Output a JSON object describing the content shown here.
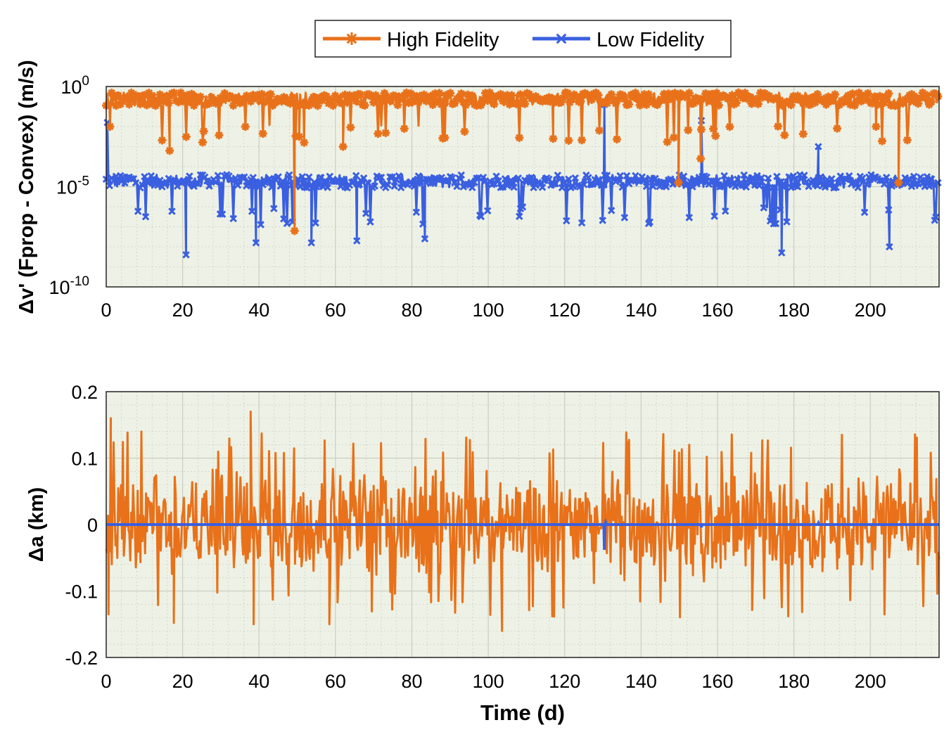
{
  "colors": {
    "high_fidelity": "#e8711a",
    "low_fidelity": "#3a5fe0",
    "plot_background": "#eef2e6",
    "grid": "#c9cec0"
  },
  "legend": {
    "entries": [
      {
        "name": "High Fidelity",
        "color": "#e8711a",
        "marker": "asterisk"
      },
      {
        "name": "Low Fidelity",
        "color": "#3a5fe0",
        "marker": "x"
      }
    ],
    "placement": "top-center"
  },
  "chart_data": [
    {
      "type": "line",
      "ylabel": "Δv' (Fprop - Convex) (m/s)",
      "xlabel": "",
      "yscale": "log",
      "xlim": [
        0,
        218
      ],
      "ylim_exponents": [
        -10,
        0
      ],
      "y_ticks": [
        {
          "base": "10",
          "exp": "0"
        },
        {
          "base": "10",
          "exp": "-5"
        },
        {
          "base": "10",
          "exp": "-10"
        }
      ],
      "x_ticks": [
        "0",
        "20",
        "40",
        "60",
        "80",
        "100",
        "120",
        "140",
        "160",
        "180",
        "200"
      ],
      "x_tick_values": [
        0,
        20,
        40,
        60,
        80,
        100,
        120,
        140,
        160,
        180,
        200
      ],
      "y_grid_values": [
        -10,
        -9,
        -8,
        -7,
        -6,
        -5,
        -4,
        -3,
        -2,
        -1,
        0
      ],
      "series": [
        {
          "name": "High Fidelity",
          "marker": "asterisk",
          "typical_log10_range": [
            -1.5,
            -0.3
          ],
          "dips": [
            [
              1,
              -2.0
            ],
            [
              16.6,
              -3.2
            ],
            [
              49.3,
              -7.2
            ],
            [
              50.5,
              -2.5
            ],
            [
              51.8,
              -2.8
            ],
            [
              62,
              -3.0
            ],
            [
              117,
              -2.6
            ],
            [
              149.8,
              -4.8
            ],
            [
              155.6,
              -3.6
            ],
            [
              201.5,
              -2.0
            ],
            [
              207.4,
              -4.8
            ]
          ]
        },
        {
          "name": "Low Fidelity",
          "marker": "x",
          "typical_log10_range": [
            -5.6,
            -4.4
          ],
          "spikes": [
            [
              0.3,
              -1.8
            ],
            [
              130.4,
              -0.9
            ],
            [
              155.8,
              -1.7
            ],
            [
              186.4,
              -3.0
            ]
          ],
          "dips": [
            [
              20.9,
              -8.4
            ],
            [
              39.2,
              -7.8
            ],
            [
              53.7,
              -7.8
            ],
            [
              65.6,
              -7.7
            ],
            [
              83.4,
              -7.6
            ],
            [
              176.8,
              -8.3
            ],
            [
              205.0,
              -8.0
            ]
          ]
        }
      ]
    },
    {
      "type": "line",
      "ylabel": "Δa (km)",
      "xlabel": "Time (d)",
      "xlim": [
        0,
        218
      ],
      "ylim": [
        -0.2,
        0.2
      ],
      "y_ticks": [
        "0.2",
        "0.1",
        "0",
        "-0.1",
        "-0.2"
      ],
      "y_tick_values": [
        0.2,
        0.1,
        0,
        -0.1,
        -0.2
      ],
      "x_ticks": [
        "0",
        "20",
        "40",
        "60",
        "80",
        "100",
        "120",
        "140",
        "160",
        "180",
        "200"
      ],
      "x_tick_values": [
        0,
        20,
        40,
        60,
        80,
        100,
        120,
        140,
        160,
        180,
        200
      ],
      "series": [
        {
          "name": "High Fidelity",
          "typical_amplitude": 0.09,
          "peaks": [
            [
              1.2,
              0.16
            ],
            [
              37.8,
              0.17
            ],
            [
              38.6,
              -0.15
            ],
            [
              103.6,
              -0.16
            ],
            [
              17.7,
              -0.148
            ],
            [
              58.4,
              -0.15
            ],
            [
              0.6,
              -0.135
            ]
          ]
        },
        {
          "name": "Low Fidelity",
          "value": 0,
          "spikes": [
            [
              130.4,
              -0.038
            ],
            [
              130.7,
              0.003
            ],
            [
              155.8,
              -0.004
            ],
            [
              186.4,
              0.002
            ]
          ]
        }
      ]
    }
  ]
}
